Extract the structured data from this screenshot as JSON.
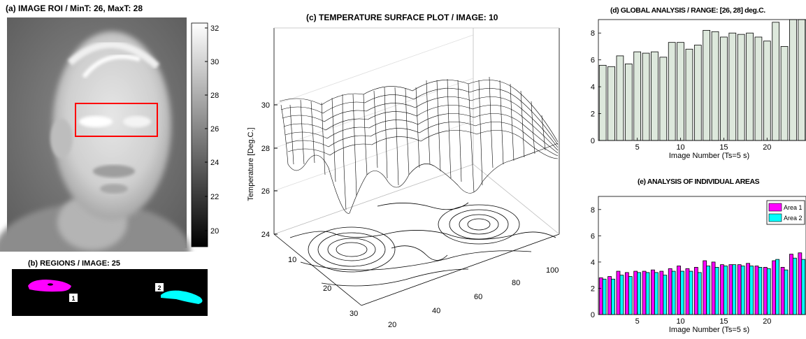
{
  "panels": {
    "a": {
      "title": "(a) IMAGE ROI / MinT: 26, MaxT: 28",
      "colorbar_ticks": [
        "32",
        "30",
        "28",
        "26",
        "24",
        "22",
        "20"
      ]
    },
    "b": {
      "title": "(b) REGIONS / IMAGE: 25",
      "region_labels": [
        "1",
        "2"
      ]
    },
    "c": {
      "title": "(c) TEMPERATURE SURFACE PLOT / IMAGE: 10",
      "zlabel": "Temperature [Deg.C.]",
      "z_ticks": [
        "30",
        "28",
        "26",
        "24"
      ],
      "y_ticks": [
        "10",
        "20",
        "30"
      ],
      "x_ticks": [
        "20",
        "40",
        "60",
        "80",
        "100"
      ]
    }
  },
  "colors": {
    "area1": "#ff00ff",
    "area2": "#00ffff",
    "bar_fill": "#dde8dc",
    "roi": "#ff0000"
  },
  "chart_data": [
    {
      "type": "bar",
      "title": "(d) GLOBAL ANALYSIS / RANGE: [26, 28] deg.C.",
      "xlabel": "Image Number (Ts=5 s)",
      "ylabel": "",
      "x": [
        1,
        2,
        3,
        4,
        5,
        6,
        7,
        8,
        9,
        10,
        11,
        12,
        13,
        14,
        15,
        16,
        17,
        18,
        19,
        20,
        21,
        22,
        23,
        24
      ],
      "values": [
        5.6,
        5.5,
        6.3,
        5.7,
        6.6,
        6.5,
        6.6,
        6.2,
        7.3,
        7.3,
        6.8,
        7.1,
        8.2,
        8.1,
        7.7,
        8.0,
        7.9,
        8.0,
        7.7,
        7.4,
        8.8,
        7.0,
        9.0,
        9.0
      ],
      "xlim": [
        0.5,
        24.5
      ],
      "ylim": [
        0,
        9
      ],
      "xticks": [
        5,
        10,
        15,
        20
      ],
      "yticks": [
        0,
        2,
        4,
        6,
        8
      ]
    },
    {
      "type": "bar",
      "title": "(e) ANALYSIS OF INDIVIDUAL AREAS",
      "xlabel": "Image Number (Ts=5 s)",
      "ylabel": "",
      "x": [
        1,
        2,
        3,
        4,
        5,
        6,
        7,
        8,
        9,
        10,
        11,
        12,
        13,
        14,
        15,
        16,
        17,
        18,
        19,
        20,
        21,
        22,
        23,
        24
      ],
      "series": [
        {
          "name": "Area 1",
          "values": [
            2.8,
            2.9,
            3.3,
            3.2,
            3.3,
            3.3,
            3.4,
            3.3,
            3.5,
            3.7,
            3.5,
            3.6,
            4.1,
            4.0,
            3.8,
            3.8,
            3.8,
            3.9,
            3.7,
            3.6,
            4.1,
            3.6,
            4.6,
            4.7
          ]
        },
        {
          "name": "Area 2",
          "values": [
            2.7,
            2.7,
            3.0,
            2.9,
            3.2,
            3.2,
            3.2,
            3.0,
            3.3,
            3.3,
            3.3,
            3.2,
            3.7,
            3.6,
            3.7,
            3.8,
            3.7,
            3.7,
            3.6,
            3.5,
            4.2,
            3.4,
            4.3,
            4.2
          ]
        }
      ],
      "xlim": [
        0.5,
        24.5
      ],
      "ylim": [
        0,
        9
      ],
      "xticks": [
        5,
        10,
        15,
        20
      ],
      "yticks": [
        0,
        2,
        4,
        6,
        8
      ],
      "legend": "top-right"
    }
  ]
}
